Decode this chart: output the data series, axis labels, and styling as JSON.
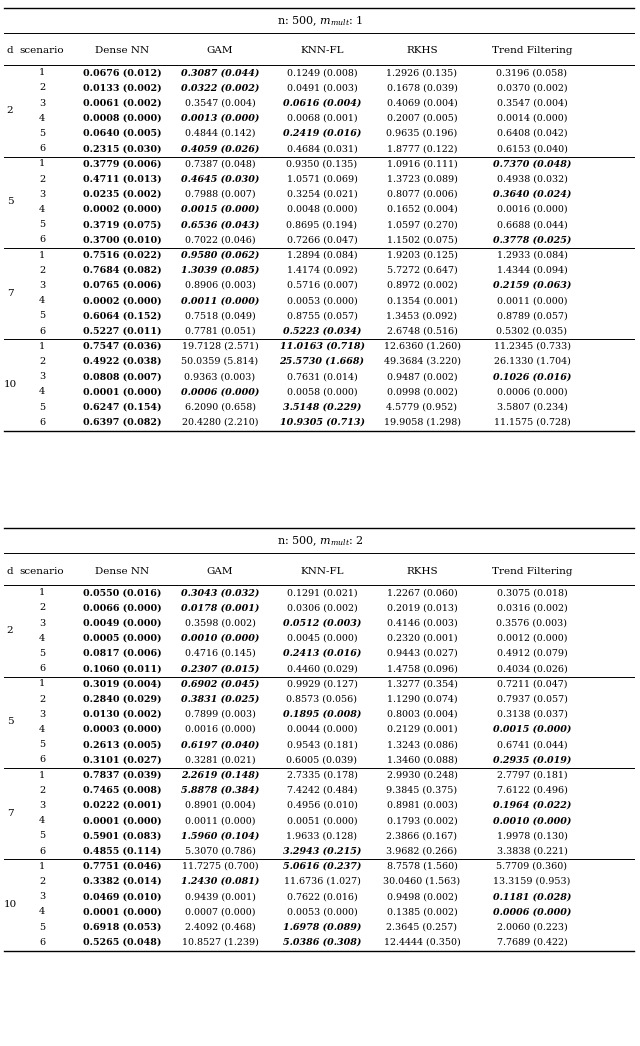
{
  "title1": "n: 500, $m_{mult}$: 1",
  "title2": "n: 500, $m_{mult}$: 2",
  "col_headers": [
    "Dense NN",
    "GAM",
    "KNN-FL",
    "RKHS",
    "Trend Filtering"
  ],
  "d_values": [
    2,
    5,
    7,
    10
  ],
  "scenarios": [
    1,
    2,
    3,
    4,
    5,
    6
  ],
  "table1": {
    "2": {
      "1": [
        "0.0676 (0.012)",
        "0.3087 (0.044)",
        "0.1249 (0.008)",
        "1.2926 (0.135)",
        "0.3196 (0.058)"
      ],
      "2": [
        "0.0133 (0.002)",
        "0.0322 (0.002)",
        "0.0491 (0.003)",
        "0.1678 (0.039)",
        "0.0370 (0.002)"
      ],
      "3": [
        "0.0061 (0.002)",
        "0.3547 (0.004)",
        "0.0616 (0.004)",
        "0.4069 (0.004)",
        "0.3547 (0.004)"
      ],
      "4": [
        "0.0008 (0.000)",
        "0.0013 (0.000)",
        "0.0068 (0.001)",
        "0.2007 (0.005)",
        "0.0014 (0.000)"
      ],
      "5": [
        "0.0640 (0.005)",
        "0.4844 (0.142)",
        "0.2419 (0.016)",
        "0.9635 (0.196)",
        "0.6408 (0.042)"
      ],
      "6": [
        "0.2315 (0.030)",
        "0.4059 (0.026)",
        "0.4684 (0.031)",
        "1.8777 (0.122)",
        "0.6153 (0.040)"
      ]
    },
    "5": {
      "1": [
        "0.3779 (0.006)",
        "0.7387 (0.048)",
        "0.9350 (0.135)",
        "1.0916 (0.111)",
        "0.7370 (0.048)"
      ],
      "2": [
        "0.4711 (0.013)",
        "0.4645 (0.030)",
        "1.0571 (0.069)",
        "1.3723 (0.089)",
        "0.4938 (0.032)"
      ],
      "3": [
        "0.0235 (0.002)",
        "0.7988 (0.007)",
        "0.3254 (0.021)",
        "0.8077 (0.006)",
        "0.3640 (0.024)"
      ],
      "4": [
        "0.0002 (0.000)",
        "0.0015 (0.000)",
        "0.0048 (0.000)",
        "0.1652 (0.004)",
        "0.0016 (0.000)"
      ],
      "5": [
        "0.3719 (0.075)",
        "0.6536 (0.043)",
        "0.8695 (0.194)",
        "1.0597 (0.270)",
        "0.6688 (0.044)"
      ],
      "6": [
        "0.3700 (0.010)",
        "0.7022 (0.046)",
        "0.7266 (0.047)",
        "1.1502 (0.075)",
        "0.3778 (0.025)"
      ]
    },
    "7": {
      "1": [
        "0.7516 (0.022)",
        "0.9580 (0.062)",
        "1.2894 (0.084)",
        "1.9203 (0.125)",
        "1.2933 (0.084)"
      ],
      "2": [
        "0.7684 (0.082)",
        "1.3039 (0.085)",
        "1.4174 (0.092)",
        "5.7272 (0.647)",
        "1.4344 (0.094)"
      ],
      "3": [
        "0.0765 (0.006)",
        "0.8906 (0.003)",
        "0.5716 (0.007)",
        "0.8972 (0.002)",
        "0.2159 (0.063)"
      ],
      "4": [
        "0.0002 (0.000)",
        "0.0011 (0.000)",
        "0.0053 (0.000)",
        "0.1354 (0.001)",
        "0.0011 (0.000)"
      ],
      "5": [
        "0.6064 (0.152)",
        "0.7518 (0.049)",
        "0.8755 (0.057)",
        "1.3453 (0.092)",
        "0.8789 (0.057)"
      ],
      "6": [
        "0.5227 (0.011)",
        "0.7781 (0.051)",
        "0.5223 (0.034)",
        "2.6748 (0.516)",
        "0.5302 (0.035)"
      ]
    },
    "10": {
      "1": [
        "0.7547 (0.036)",
        "19.7128 (2.571)",
        "11.0163 (0.718)",
        "12.6360 (1.260)",
        "11.2345 (0.733)"
      ],
      "2": [
        "0.4922 (0.038)",
        "50.0359 (5.814)",
        "25.5730 (1.668)",
        "49.3684 (3.220)",
        "26.1330 (1.704)"
      ],
      "3": [
        "0.0808 (0.007)",
        "0.9363 (0.003)",
        "0.7631 (0.014)",
        "0.9487 (0.002)",
        "0.1026 (0.016)"
      ],
      "4": [
        "0.0001 (0.000)",
        "0.0006 (0.000)",
        "0.0058 (0.000)",
        "0.0998 (0.002)",
        "0.0006 (0.000)"
      ],
      "5": [
        "0.6247 (0.154)",
        "6.2090 (0.658)",
        "3.5148 (0.229)",
        "4.5779 (0.952)",
        "3.5807 (0.234)"
      ],
      "6": [
        "0.6397 (0.082)",
        "20.4280 (2.210)",
        "10.9305 (0.713)",
        "19.9058 (1.298)",
        "11.1575 (0.728)"
      ]
    }
  },
  "table2": {
    "2": {
      "1": [
        "0.0550 (0.016)",
        "0.3043 (0.032)",
        "0.1291 (0.021)",
        "1.2267 (0.060)",
        "0.3075 (0.018)"
      ],
      "2": [
        "0.0066 (0.000)",
        "0.0178 (0.001)",
        "0.0306 (0.002)",
        "0.2019 (0.013)",
        "0.0316 (0.002)"
      ],
      "3": [
        "0.0049 (0.000)",
        "0.3598 (0.002)",
        "0.0512 (0.003)",
        "0.4146 (0.003)",
        "0.3576 (0.003)"
      ],
      "4": [
        "0.0005 (0.000)",
        "0.0010 (0.000)",
        "0.0045 (0.000)",
        "0.2320 (0.001)",
        "0.0012 (0.000)"
      ],
      "5": [
        "0.0817 (0.006)",
        "0.4716 (0.145)",
        "0.2413 (0.016)",
        "0.9443 (0.027)",
        "0.4912 (0.079)"
      ],
      "6": [
        "0.1060 (0.011)",
        "0.2307 (0.015)",
        "0.4460 (0.029)",
        "1.4758 (0.096)",
        "0.4034 (0.026)"
      ]
    },
    "5": {
      "1": [
        "0.3019 (0.004)",
        "0.6902 (0.045)",
        "0.9929 (0.127)",
        "1.3277 (0.354)",
        "0.7211 (0.047)"
      ],
      "2": [
        "0.2840 (0.029)",
        "0.3831 (0.025)",
        "0.8573 (0.056)",
        "1.1290 (0.074)",
        "0.7937 (0.057)"
      ],
      "3": [
        "0.0130 (0.002)",
        "0.7899 (0.003)",
        "0.1895 (0.008)",
        "0.8003 (0.004)",
        "0.3138 (0.037)"
      ],
      "4": [
        "0.0003 (0.000)",
        "0.0016 (0.000)",
        "0.0044 (0.000)",
        "0.2129 (0.001)",
        "0.0015 (0.000)"
      ],
      "5": [
        "0.2613 (0.005)",
        "0.6197 (0.040)",
        "0.9543 (0.181)",
        "1.3243 (0.086)",
        "0.6741 (0.044)"
      ],
      "6": [
        "0.3101 (0.027)",
        "0.3281 (0.021)",
        "0.6005 (0.039)",
        "1.3460 (0.088)",
        "0.2935 (0.019)"
      ]
    },
    "7": {
      "1": [
        "0.7837 (0.039)",
        "2.2619 (0.148)",
        "2.7335 (0.178)",
        "2.9930 (0.248)",
        "2.7797 (0.181)"
      ],
      "2": [
        "0.7465 (0.008)",
        "5.8878 (0.384)",
        "7.4242 (0.484)",
        "9.3845 (0.375)",
        "7.6122 (0.496)"
      ],
      "3": [
        "0.0222 (0.001)",
        "0.8901 (0.004)",
        "0.4956 (0.010)",
        "0.8981 (0.003)",
        "0.1964 (0.022)"
      ],
      "4": [
        "0.0001 (0.000)",
        "0.0011 (0.000)",
        "0.0051 (0.000)",
        "0.1793 (0.002)",
        "0.0010 (0.000)"
      ],
      "5": [
        "0.5901 (0.083)",
        "1.5960 (0.104)",
        "1.9633 (0.128)",
        "2.3866 (0.167)",
        "1.9978 (0.130)"
      ],
      "6": [
        "0.4855 (0.114)",
        "5.3070 (0.786)",
        "3.2943 (0.215)",
        "3.9682 (0.266)",
        "3.3838 (0.221)"
      ]
    },
    "10": {
      "1": [
        "0.7751 (0.046)",
        "11.7275 (0.700)",
        "5.0616 (0.237)",
        "8.7578 (1.560)",
        "5.7709 (0.360)"
      ],
      "2": [
        "0.3382 (0.014)",
        "1.2430 (0.081)",
        "11.6736 (1.027)",
        "30.0460 (1.563)",
        "13.3159 (0.953)"
      ],
      "3": [
        "0.0469 (0.010)",
        "0.9439 (0.001)",
        "0.7622 (0.016)",
        "0.9498 (0.002)",
        "0.1181 (0.028)"
      ],
      "4": [
        "0.0001 (0.000)",
        "0.0007 (0.000)",
        "0.0053 (0.000)",
        "0.1385 (0.002)",
        "0.0006 (0.000)"
      ],
      "5": [
        "0.6918 (0.053)",
        "2.4092 (0.468)",
        "1.6978 (0.089)",
        "2.3645 (0.257)",
        "2.0060 (0.223)"
      ],
      "6": [
        "0.5265 (0.048)",
        "10.8527 (1.239)",
        "5.0386 (0.308)",
        "12.4444 (0.350)",
        "7.7689 (0.422)"
      ]
    }
  },
  "italic_bold": {
    "1_2_1": [
      1,
      1,
      0,
      0,
      0
    ],
    "1_2_2": [
      1,
      1,
      0,
      0,
      0
    ],
    "1_2_3": [
      1,
      0,
      1,
      0,
      0
    ],
    "1_2_4": [
      1,
      1,
      0,
      0,
      0
    ],
    "1_2_5": [
      1,
      0,
      1,
      0,
      0
    ],
    "1_2_6": [
      1,
      1,
      0,
      0,
      0
    ],
    "1_5_1": [
      1,
      0,
      0,
      0,
      1
    ],
    "1_5_2": [
      1,
      1,
      0,
      0,
      0
    ],
    "1_5_3": [
      1,
      0,
      0,
      0,
      1
    ],
    "1_5_4": [
      1,
      1,
      0,
      0,
      0
    ],
    "1_5_5": [
      1,
      1,
      0,
      0,
      0
    ],
    "1_5_6": [
      1,
      0,
      0,
      0,
      1
    ],
    "1_7_1": [
      1,
      1,
      0,
      0,
      0
    ],
    "1_7_2": [
      1,
      1,
      0,
      0,
      0
    ],
    "1_7_3": [
      1,
      0,
      0,
      0,
      1
    ],
    "1_7_4": [
      1,
      1,
      0,
      0,
      0
    ],
    "1_7_5": [
      1,
      0,
      0,
      0,
      0
    ],
    "1_7_6": [
      1,
      0,
      1,
      0,
      0
    ],
    "1_10_1": [
      1,
      0,
      1,
      0,
      0
    ],
    "1_10_2": [
      1,
      0,
      1,
      0,
      0
    ],
    "1_10_3": [
      1,
      0,
      0,
      0,
      1
    ],
    "1_10_4": [
      1,
      1,
      0,
      0,
      0
    ],
    "1_10_5": [
      1,
      0,
      1,
      0,
      0
    ],
    "1_10_6": [
      1,
      0,
      1,
      0,
      0
    ],
    "2_2_1": [
      1,
      1,
      0,
      0,
      0
    ],
    "2_2_2": [
      1,
      1,
      0,
      0,
      0
    ],
    "2_2_3": [
      1,
      0,
      1,
      0,
      0
    ],
    "2_2_4": [
      1,
      1,
      0,
      0,
      0
    ],
    "2_2_5": [
      1,
      0,
      1,
      0,
      0
    ],
    "2_2_6": [
      1,
      1,
      0,
      0,
      0
    ],
    "2_5_1": [
      1,
      1,
      0,
      0,
      0
    ],
    "2_5_2": [
      1,
      1,
      0,
      0,
      0
    ],
    "2_5_3": [
      1,
      0,
      1,
      0,
      0
    ],
    "2_5_4": [
      1,
      0,
      0,
      0,
      1
    ],
    "2_5_5": [
      1,
      1,
      0,
      0,
      0
    ],
    "2_5_6": [
      1,
      0,
      0,
      0,
      1
    ],
    "2_7_1": [
      1,
      1,
      0,
      0,
      0
    ],
    "2_7_2": [
      1,
      1,
      0,
      0,
      0
    ],
    "2_7_3": [
      1,
      0,
      0,
      0,
      1
    ],
    "2_7_4": [
      1,
      0,
      0,
      0,
      1
    ],
    "2_7_5": [
      1,
      1,
      0,
      0,
      0
    ],
    "2_7_6": [
      1,
      0,
      1,
      0,
      0
    ],
    "2_10_1": [
      1,
      0,
      1,
      0,
      0
    ],
    "2_10_2": [
      1,
      1,
      0,
      0,
      0
    ],
    "2_10_3": [
      1,
      0,
      0,
      0,
      1
    ],
    "2_10_4": [
      1,
      0,
      0,
      0,
      1
    ],
    "2_10_5": [
      1,
      0,
      1,
      0,
      0
    ],
    "2_10_6": [
      1,
      0,
      1,
      0,
      0
    ]
  },
  "figwidth": 6.4,
  "figheight": 10.46,
  "dpi": 100
}
